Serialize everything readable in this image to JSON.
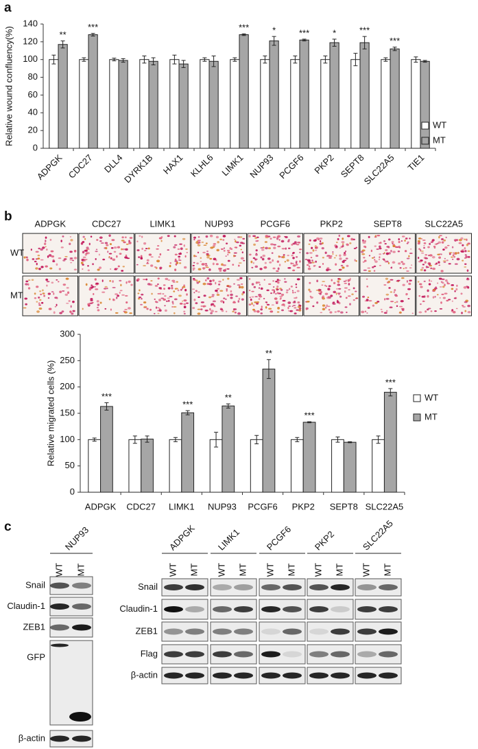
{
  "panel_labels": [
    "a",
    "b",
    "c"
  ],
  "chart_data": [
    {
      "type": "bar",
      "y_label": "Relative wound confluency(%)",
      "categories": [
        "ADPGK",
        "CDC27",
        "DLL4",
        "DYRK1B",
        "HAX1",
        "KLHL6",
        "LIMK1",
        "NUP93",
        "PCGF6",
        "PKP2",
        "SEPT8",
        "SLC22A5",
        "TIE1"
      ],
      "series": [
        {
          "name": "WT",
          "color": "#ffffff",
          "values": [
            100,
            100,
            100,
            100,
            100,
            100,
            100,
            100,
            100,
            100,
            100,
            100,
            100
          ],
          "errors": [
            5,
            2,
            1.5,
            4,
            5,
            2,
            2,
            4,
            4,
            4,
            7,
            2,
            3
          ]
        },
        {
          "name": "MT",
          "color": "#a6a6a6",
          "values": [
            117,
            128,
            99,
            98,
            95,
            98,
            128,
            121,
            122,
            119,
            119,
            112,
            98
          ],
          "errors": [
            4,
            1.5,
            2,
            4,
            4,
            6,
            1,
            5,
            1,
            4,
            7,
            2,
            1
          ]
        }
      ],
      "annotations": [
        "**",
        "***",
        null,
        null,
        null,
        null,
        "***",
        "*",
        "***",
        "*",
        "***",
        "***",
        null
      ],
      "ylim": [
        0,
        140
      ],
      "yticks": [
        0,
        20,
        40,
        60,
        80,
        100,
        120,
        140
      ],
      "legend": "right"
    },
    {
      "type": "bar",
      "y_label": "Relative migrated cells (%)",
      "categories": [
        "ADPGK",
        "CDC27",
        "LIMK1",
        "NUP93",
        "PCGF6",
        "PKP2",
        "SEPT8",
        "SLC22A5"
      ],
      "series": [
        {
          "name": "WT",
          "color": "#ffffff",
          "values": [
            100,
            100,
            100,
            100,
            100,
            100,
            100,
            100
          ],
          "errors": [
            3,
            7,
            4,
            14,
            8,
            4,
            5,
            7
          ]
        },
        {
          "name": "MT",
          "color": "#a6a6a6",
          "values": [
            163,
            101,
            151,
            164,
            234,
            133,
            95,
            190
          ],
          "errors": [
            7,
            6,
            4,
            4,
            18,
            1,
            1,
            7
          ]
        }
      ],
      "annotations": [
        "***",
        null,
        "***",
        "**",
        "**",
        "***",
        null,
        "***"
      ],
      "ylim": [
        0,
        300
      ],
      "yticks": [
        0,
        50,
        100,
        150,
        200,
        250,
        300
      ],
      "legend": "right"
    }
  ],
  "migration_images": {
    "columns": [
      "ADPGK",
      "CDC27",
      "LIMK1",
      "NUP93",
      "PCGF6",
      "PKP2",
      "SEPT8",
      "SLC22A5"
    ],
    "rows": [
      "WT",
      "MT"
    ]
  },
  "western_blot": {
    "lanes": [
      "WT",
      "MT"
    ],
    "left": {
      "group": "NUP93",
      "rows": [
        "Snail",
        "Claudin-1",
        "ZEB1",
        "GFP",
        "β-actin"
      ]
    },
    "right": {
      "groups": [
        "ADPGK",
        "LIMK1",
        "PCGF6",
        "PKP2",
        "SLC22A5"
      ],
      "rows": [
        "Snail",
        "Claudin-1",
        "ZEB1",
        "Flag",
        "β-actin"
      ]
    }
  }
}
